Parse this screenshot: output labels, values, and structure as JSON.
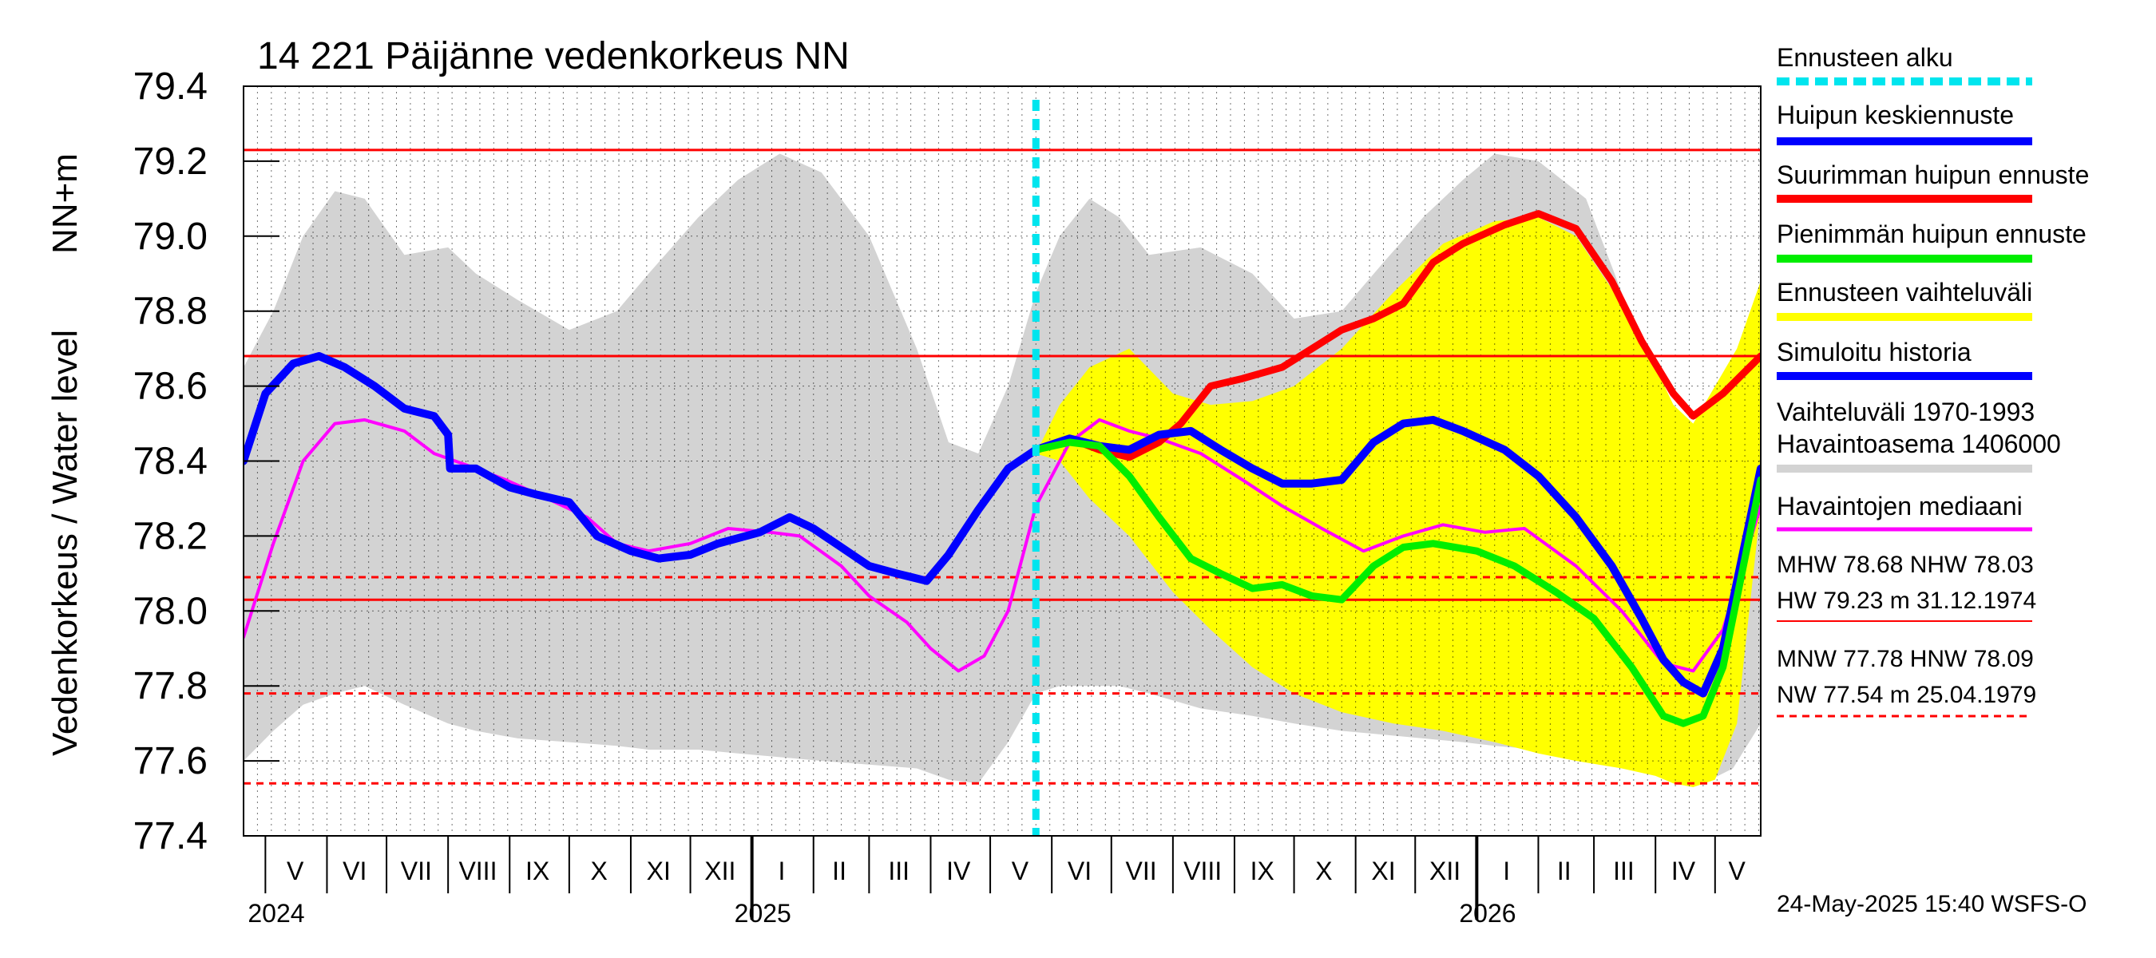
{
  "chart_data": {
    "type": "line",
    "title": "14 221 Päijänne vedenkorkeus NN",
    "ylabel": "Vedenkorkeus / Water level",
    "yunit": "NN+m",
    "ylim": [
      77.4,
      79.4
    ],
    "yticks": [
      "79.4",
      "79.2",
      "79.0",
      "78.8",
      "78.6",
      "78.4",
      "78.2",
      "78.0",
      "77.8",
      "77.6",
      "77.4"
    ],
    "xlim": [
      "2024-04-20",
      "2026-05-24"
    ],
    "month_labels": [
      {
        "label": "V",
        "date": "2024-05-16"
      },
      {
        "label": "VI",
        "date": "2024-06-15"
      },
      {
        "label": "VII",
        "date": "2024-07-16"
      },
      {
        "label": "VIII",
        "date": "2024-08-16"
      },
      {
        "label": "IX",
        "date": "2024-09-15"
      },
      {
        "label": "X",
        "date": "2024-10-16"
      },
      {
        "label": "XI",
        "date": "2024-11-15"
      },
      {
        "label": "XII",
        "date": "2024-12-16"
      },
      {
        "label": "I",
        "date": "2025-01-16"
      },
      {
        "label": "II",
        "date": "2025-02-14"
      },
      {
        "label": "III",
        "date": "2025-03-16"
      },
      {
        "label": "IV",
        "date": "2025-04-15"
      },
      {
        "label": "V",
        "date": "2025-05-16"
      },
      {
        "label": "VI",
        "date": "2025-06-15"
      },
      {
        "label": "VII",
        "date": "2025-07-16"
      },
      {
        "label": "VIII",
        "date": "2025-08-16"
      },
      {
        "label": "IX",
        "date": "2025-09-15"
      },
      {
        "label": "X",
        "date": "2025-10-16"
      },
      {
        "label": "XI",
        "date": "2025-11-15"
      },
      {
        "label": "XII",
        "date": "2025-12-16"
      },
      {
        "label": "I",
        "date": "2026-01-16"
      },
      {
        "label": "II",
        "date": "2026-02-14"
      },
      {
        "label": "III",
        "date": "2026-03-16"
      },
      {
        "label": "IV",
        "date": "2026-04-15"
      },
      {
        "label": "V",
        "date": "2026-05-12"
      }
    ],
    "year_labels": [
      {
        "label": "2024",
        "date": "2024-05-01"
      },
      {
        "label": "2025",
        "date": "2025-01-01"
      },
      {
        "label": "2026",
        "date": "2026-01-01"
      }
    ],
    "year_boundaries": [
      "2025-01-01",
      "2026-01-01"
    ],
    "forecast_start": "2025-05-24",
    "reference_lines": [
      {
        "name": "HW",
        "value": 79.23,
        "color": "#ff0000",
        "style": "solid"
      },
      {
        "name": "MHW",
        "value": 78.68,
        "color": "#ff0000",
        "style": "solid"
      },
      {
        "name": "NHW",
        "value": 78.03,
        "color": "#ff0000",
        "style": "solid"
      },
      {
        "name": "HNW",
        "value": 78.09,
        "color": "#ff0000",
        "style": "dashed"
      },
      {
        "name": "MNW",
        "value": 77.78,
        "color": "#ff0000",
        "style": "dashed"
      },
      {
        "name": "NW",
        "value": 77.54,
        "color": "#ff0000",
        "style": "dashed"
      }
    ],
    "band_1970_1993": {
      "color": "#d3d3d3",
      "x": [
        "2024-04-20",
        "2024-05-05",
        "2024-05-20",
        "2024-06-05",
        "2024-06-20",
        "2024-07-10",
        "2024-08-01",
        "2024-08-15",
        "2024-09-05",
        "2024-10-01",
        "2024-10-25",
        "2024-11-10",
        "2024-12-05",
        "2024-12-25",
        "2025-01-15",
        "2025-02-05",
        "2025-03-01",
        "2025-03-25",
        "2025-04-10",
        "2025-04-25",
        "2025-05-10",
        "2025-05-24",
        "2025-06-05",
        "2025-06-20",
        "2025-07-05",
        "2025-07-20",
        "2025-08-15",
        "2025-09-10",
        "2025-10-01",
        "2025-10-25",
        "2025-11-15",
        "2025-12-05",
        "2025-12-25",
        "2026-01-10",
        "2026-02-01",
        "2026-02-25",
        "2026-03-15",
        "2026-03-28",
        "2026-04-10",
        "2026-04-25",
        "2026-05-10",
        "2026-05-24"
      ],
      "upper": [
        78.65,
        78.8,
        79.0,
        79.12,
        79.1,
        78.95,
        78.97,
        78.9,
        78.83,
        78.75,
        78.8,
        78.9,
        79.05,
        79.15,
        79.22,
        79.17,
        79.0,
        78.7,
        78.45,
        78.42,
        78.6,
        78.85,
        79.0,
        79.1,
        79.05,
        78.95,
        78.97,
        78.9,
        78.78,
        78.8,
        78.93,
        79.05,
        79.15,
        79.22,
        79.2,
        79.1,
        78.85,
        78.65,
        78.38,
        78.52,
        78.65,
        78.75
      ],
      "lower": [
        77.6,
        77.68,
        77.75,
        77.78,
        77.8,
        77.75,
        77.7,
        77.68,
        77.66,
        77.65,
        77.64,
        77.63,
        77.63,
        77.62,
        77.61,
        77.6,
        77.59,
        77.58,
        77.55,
        77.54,
        77.65,
        77.78,
        77.8,
        77.8,
        77.8,
        77.78,
        77.74,
        77.72,
        77.7,
        77.68,
        77.67,
        77.66,
        77.65,
        77.64,
        77.63,
        77.62,
        77.6,
        77.58,
        77.55,
        77.54,
        77.58,
        77.7
      ]
    },
    "band_forecast": {
      "color": "#ffff00",
      "x": [
        "2025-05-24",
        "2025-06-05",
        "2025-06-20",
        "2025-07-10",
        "2025-08-01",
        "2025-08-20",
        "2025-09-10",
        "2025-10-01",
        "2025-10-25",
        "2025-11-20",
        "2025-12-15",
        "2026-01-10",
        "2026-02-01",
        "2026-02-20",
        "2026-03-15",
        "2026-04-01",
        "2026-04-10",
        "2026-04-20",
        "2026-05-01",
        "2026-05-12",
        "2026-05-24"
      ],
      "upper": [
        78.42,
        78.55,
        78.65,
        78.7,
        78.58,
        78.55,
        78.56,
        78.6,
        78.7,
        78.85,
        78.98,
        79.04,
        79.05,
        79.0,
        78.82,
        78.65,
        78.55,
        78.5,
        78.6,
        78.7,
        78.88
      ],
      "lower": [
        78.42,
        78.4,
        78.3,
        78.2,
        78.05,
        77.95,
        77.85,
        77.78,
        77.73,
        77.7,
        77.68,
        77.65,
        77.62,
        77.6,
        77.58,
        77.56,
        77.54,
        77.53,
        77.55,
        77.7,
        78.28
      ]
    },
    "series": [
      {
        "name": "Havaintojen mediaani",
        "color": "#ff00ff",
        "x": [
          "2024-04-20",
          "2024-05-05",
          "2024-05-20",
          "2024-06-05",
          "2024-06-20",
          "2024-07-10",
          "2024-07-25",
          "2024-08-10",
          "2024-08-30",
          "2024-09-20",
          "2024-10-10",
          "2024-10-25",
          "2024-11-10",
          "2024-12-01",
          "2024-12-20",
          "2025-01-10",
          "2025-01-25",
          "2025-02-15",
          "2025-03-01",
          "2025-03-20",
          "2025-04-01",
          "2025-04-15",
          "2025-04-28",
          "2025-05-10",
          "2025-05-24",
          "2025-06-10",
          "2025-06-25",
          "2025-07-10",
          "2025-07-25",
          "2025-08-15",
          "2025-09-05",
          "2025-09-25",
          "2025-10-15",
          "2025-11-05",
          "2025-11-25",
          "2025-12-15",
          "2026-01-05",
          "2026-01-25",
          "2026-02-20",
          "2026-03-15",
          "2026-04-05",
          "2026-04-20",
          "2026-05-05",
          "2026-05-24"
        ],
        "y": [
          77.93,
          78.18,
          78.4,
          78.5,
          78.51,
          78.48,
          78.42,
          78.39,
          78.35,
          78.3,
          78.25,
          78.18,
          78.16,
          78.18,
          78.22,
          78.21,
          78.2,
          78.12,
          78.04,
          77.97,
          77.9,
          77.84,
          77.88,
          78.0,
          78.28,
          78.45,
          78.51,
          78.48,
          78.46,
          78.42,
          78.35,
          78.28,
          78.22,
          78.16,
          78.2,
          78.23,
          78.21,
          78.22,
          78.12,
          78.0,
          77.86,
          77.84,
          77.95,
          78.28
        ]
      },
      {
        "name": "Simuloitu historia",
        "color": "#0000ff",
        "x": [
          "2024-04-20",
          "2024-05-01",
          "2024-05-15",
          "2024-05-28",
          "2024-06-10",
          "2024-06-25",
          "2024-07-10",
          "2024-07-25",
          "2024-08-01",
          "2024-08-02",
          "2024-08-15",
          "2024-09-01",
          "2024-09-15",
          "2024-10-01",
          "2024-10-15",
          "2024-11-01",
          "2024-11-15",
          "2024-12-01",
          "2024-12-15",
          "2025-01-05",
          "2025-01-20",
          "2025-02-01",
          "2025-02-15",
          "2025-03-01",
          "2025-03-15",
          "2025-03-30",
          "2025-04-10",
          "2025-04-25",
          "2025-05-10",
          "2025-05-24"
        ],
        "y": [
          78.4,
          78.58,
          78.66,
          78.68,
          78.65,
          78.6,
          78.54,
          78.52,
          78.47,
          78.38,
          78.38,
          78.33,
          78.31,
          78.29,
          78.2,
          78.16,
          78.14,
          78.15,
          78.18,
          78.21,
          78.25,
          78.22,
          78.17,
          78.12,
          78.1,
          78.08,
          78.15,
          78.27,
          78.38,
          78.43
        ]
      },
      {
        "name": "Suurimman huipun ennuste",
        "color": "#ff0000",
        "x": [
          "2025-05-24",
          "2025-06-10",
          "2025-06-25",
          "2025-07-10",
          "2025-07-25",
          "2025-08-05",
          "2025-08-20",
          "2025-09-05",
          "2025-09-25",
          "2025-10-10",
          "2025-10-25",
          "2025-11-10",
          "2025-11-25",
          "2025-12-10",
          "2025-12-25",
          "2026-01-15",
          "2026-02-01",
          "2026-02-20",
          "2026-03-10",
          "2026-03-25",
          "2026-04-10",
          "2026-04-20",
          "2026-05-05",
          "2026-05-24"
        ],
        "y": [
          78.43,
          78.46,
          78.43,
          78.41,
          78.45,
          78.5,
          78.6,
          78.62,
          78.65,
          78.7,
          78.75,
          78.78,
          78.82,
          78.93,
          78.98,
          79.03,
          79.06,
          79.02,
          78.88,
          78.72,
          78.58,
          78.52,
          78.58,
          78.68
        ]
      },
      {
        "name": "Huipun keskiennuste",
        "color": "#0000ff",
        "x": [
          "2025-05-24",
          "2025-06-10",
          "2025-06-25",
          "2025-07-10",
          "2025-07-25",
          "2025-08-10",
          "2025-08-25",
          "2025-09-10",
          "2025-09-25",
          "2025-10-10",
          "2025-10-25",
          "2025-11-10",
          "2025-11-25",
          "2025-12-10",
          "2025-12-25",
          "2026-01-15",
          "2026-02-01",
          "2026-02-20",
          "2026-03-10",
          "2026-03-25",
          "2026-04-05",
          "2026-04-15",
          "2026-04-25",
          "2026-05-05",
          "2026-05-24"
        ],
        "y": [
          78.43,
          78.46,
          78.44,
          78.43,
          78.47,
          78.48,
          78.43,
          78.38,
          78.34,
          78.34,
          78.35,
          78.45,
          78.5,
          78.51,
          78.48,
          78.43,
          78.36,
          78.25,
          78.12,
          77.98,
          77.87,
          77.81,
          77.78,
          77.9,
          78.38
        ]
      },
      {
        "name": "Pienimmän huipun ennuste",
        "color": "#00ee00",
        "x": [
          "2025-05-24",
          "2025-06-10",
          "2025-06-25",
          "2025-07-10",
          "2025-07-25",
          "2025-08-10",
          "2025-08-25",
          "2025-09-10",
          "2025-09-25",
          "2025-10-10",
          "2025-10-25",
          "2025-11-10",
          "2025-11-25",
          "2025-12-10",
          "2026-01-01",
          "2026-01-20",
          "2026-02-10",
          "2026-03-01",
          "2026-03-20",
          "2026-04-05",
          "2026-04-15",
          "2026-04-25",
          "2026-05-05",
          "2026-05-24"
        ],
        "y": [
          78.43,
          78.45,
          78.44,
          78.36,
          78.25,
          78.14,
          78.1,
          78.06,
          78.07,
          78.04,
          78.03,
          78.12,
          78.17,
          78.18,
          78.16,
          78.12,
          78.05,
          77.98,
          77.85,
          77.72,
          77.7,
          77.72,
          77.85,
          78.35
        ]
      }
    ],
    "legend": [
      {
        "text": "Ennusteen alku",
        "color": "#00e5ee",
        "style": "dotted"
      },
      {
        "text": "Huipun keskiennuste",
        "color": "#0000ff",
        "style": "solid"
      },
      {
        "text": "Suurimman huipun ennuste",
        "color": "#ff0000",
        "style": "solid"
      },
      {
        "text": "Pienimmän huipun ennuste",
        "color": "#00ee00",
        "style": "solid"
      },
      {
        "text": "Ennusteen vaihteluväli",
        "color": "#ffff00",
        "style": "solid"
      },
      {
        "text": "Simuloitu historia",
        "color": "#0000ff",
        "style": "solid"
      },
      {
        "text": "Vaihteluväli 1970-1993",
        "text2": " Havaintoasema 1406000",
        "color": "#d3d3d3",
        "style": "solid"
      },
      {
        "text": "Havaintojen mediaani",
        "color": "#ff00ff",
        "style": "solid"
      }
    ],
    "stats": {
      "line1": "MHW  78.68 NHW  78.03",
      "line2": "HW  79.23 m 31.12.1974",
      "line3": "MNW  77.78 HNW  78.09",
      "line4": "NW  77.54 m 25.04.1979"
    },
    "footer": "24-May-2025 15:40 WSFS-O"
  }
}
